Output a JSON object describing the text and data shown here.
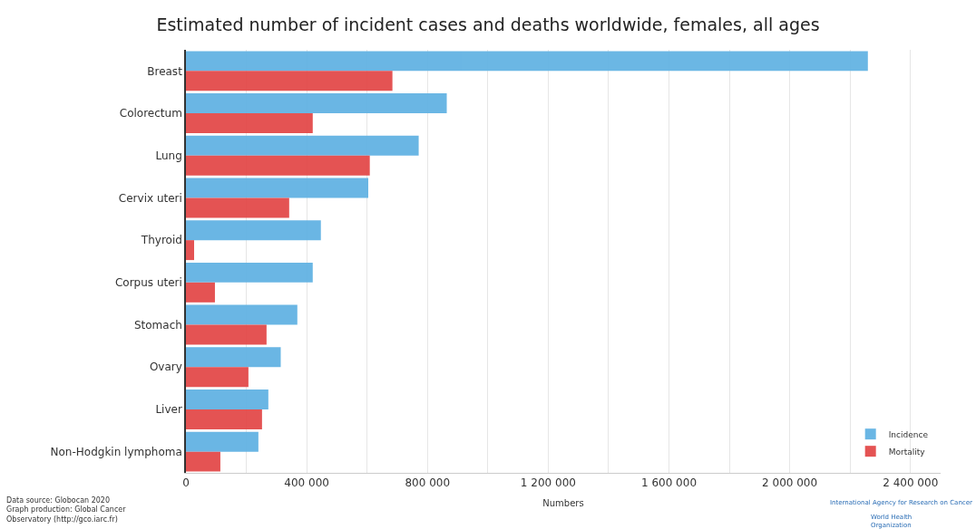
{
  "chart_data": {
    "type": "bar",
    "orientation": "horizontal",
    "title": "Estimated number of incident cases and deaths worldwide, females, all ages",
    "xlabel": "Numbers",
    "categories": [
      "Breast",
      "Colorectum",
      "Lung",
      "Cervix uteri",
      "Thyroid",
      "Corpus uteri",
      "Stomach",
      "Ovary",
      "Liver",
      "Non-Hodgkin lymphoma"
    ],
    "series": [
      {
        "name": "Incidence",
        "color": "#63b3e3",
        "values": [
          2259000,
          864000,
          771000,
          604000,
          447000,
          420000,
          369000,
          314000,
          273000,
          240000
        ]
      },
      {
        "name": "Mortality",
        "color": "#e34a4a",
        "values": [
          684000,
          420000,
          609000,
          342000,
          27000,
          96000,
          267000,
          207000,
          252000,
          114000
        ]
      }
    ],
    "xlim": [
      0,
      2500000
    ],
    "xticks": [
      0,
      {
        "value": 200000,
        "label": null
      },
      {
        "value": 400000,
        "label": "400 000"
      },
      {
        "value": 600000,
        "label": null
      },
      {
        "value": 800000,
        "label": "800 000"
      },
      {
        "value": 1000000,
        "label": null
      },
      {
        "value": 1200000,
        "label": "1 200 000"
      },
      {
        "value": 1400000,
        "label": null
      },
      {
        "value": 1600000,
        "label": "1 600 000"
      },
      {
        "value": 1800000,
        "label": null
      },
      {
        "value": 2000000,
        "label": "2 000 000"
      },
      {
        "value": 2200000,
        "label": null
      },
      {
        "value": 2400000,
        "label": "2 400 000"
      }
    ],
    "grid": "x",
    "legend": "bottom right",
    "annotations": [
      "Data source: Globocan 2020\nGraph production: Global Cancer\nObservatory (http://gco.iarc.fr)",
      "International Agency for Research on Cancer",
      "World Health\nOrganization"
    ]
  }
}
